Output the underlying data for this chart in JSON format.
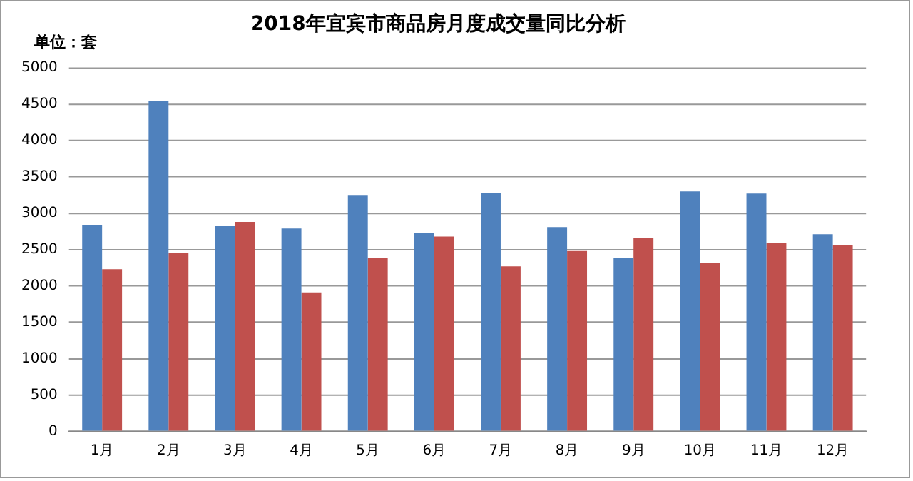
{
  "chart_data": {
    "type": "bar",
    "title": "2018年宜宾市商品房月度成交量同比分析",
    "ylabel": "单位：套",
    "categories": [
      "1月",
      "2月",
      "3月",
      "4月",
      "5月",
      "6月",
      "7月",
      "8月",
      "9月",
      "10月",
      "11月",
      "12月"
    ],
    "series": [
      {
        "color": "#4f81bd",
        "values": [
          2840,
          4550,
          2830,
          2790,
          3250,
          2730,
          3280,
          2810,
          2390,
          3300,
          3270,
          2710
        ]
      },
      {
        "color": "#c0504d",
        "values": [
          2230,
          2450,
          2880,
          1910,
          2380,
          2680,
          2270,
          2480,
          2660,
          2320,
          2590,
          2560
        ]
      }
    ],
    "ylim": [
      0,
      5000
    ],
    "yticks": [
      0,
      500,
      1000,
      1500,
      2000,
      2500,
      3000,
      3500,
      4000,
      4500,
      5000
    ],
    "grid": "y",
    "legend": false
  }
}
